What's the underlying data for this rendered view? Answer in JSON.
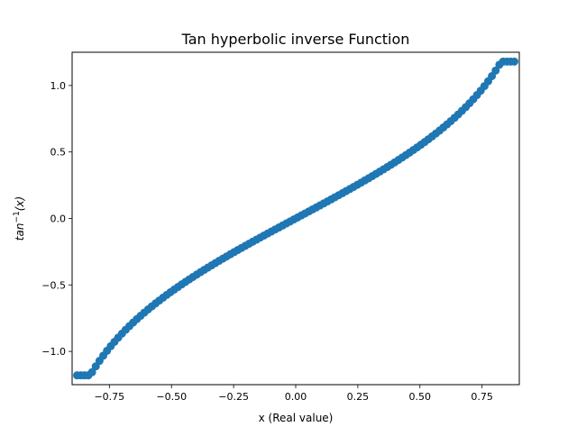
{
  "chart_data": {
    "type": "scatter",
    "title": "Tan hyperbolic inverse Function",
    "xlabel": "x (Real value)",
    "ylabel_base": "tan",
    "ylabel_sup": "−1",
    "ylabel_arg": "(x)",
    "xlim": [
      -0.9,
      0.9
    ],
    "ylim": [
      -1.25,
      1.25
    ],
    "xticks": [
      -0.75,
      -0.5,
      -0.25,
      0.0,
      0.25,
      0.5,
      0.75
    ],
    "xtick_labels": [
      "−0.75",
      "−0.50",
      "−0.25",
      "0.00",
      "0.25",
      "0.50",
      "0.75"
    ],
    "yticks": [
      -1.0,
      -0.5,
      0.0,
      0.5,
      1.0
    ],
    "ytick_labels": [
      "−1.0",
      "−0.5",
      "0.0",
      "0.5",
      "1.0"
    ],
    "grid": false,
    "marker_color": "#1f77b4",
    "series": [
      {
        "x_start": -0.88,
        "x_end": 0.88,
        "n_points": 118,
        "function": "atanh",
        "clip": [
          -1.18,
          1.18
        ],
        "values": []
      }
    ]
  }
}
